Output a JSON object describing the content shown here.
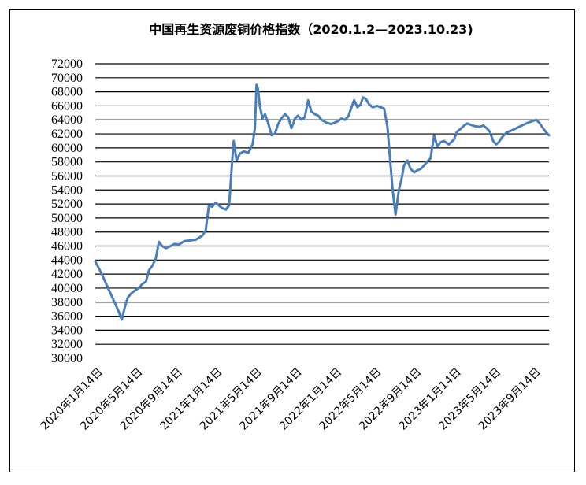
{
  "chart_data": {
    "type": "line",
    "title": "中国再生资源废铜价格指数（2020.1.2—2023.10.23)",
    "xlabel": "",
    "ylabel": "",
    "ylim": [
      30000,
      72000
    ],
    "yticks": [
      30000,
      32000,
      34000,
      36000,
      38000,
      40000,
      42000,
      44000,
      46000,
      48000,
      50000,
      52000,
      54000,
      56000,
      58000,
      60000,
      62000,
      64000,
      66000,
      68000,
      70000,
      72000
    ],
    "grid": true,
    "x_tick_labels": [
      "2020年1月14日",
      "2020年5月14日",
      "2020年9月14日",
      "2021年1月14日",
      "2021年5月14日",
      "2021年9月14日",
      "2022年1月14日",
      "2022年5月14日",
      "2022年9月14日",
      "2023年1月14日",
      "2023年5月14日",
      "2023年9月14日"
    ],
    "x_range": [
      "2020-01-02",
      "2023-10-23"
    ],
    "series": [
      {
        "color": "#4a7ebb",
        "points": [
          [
            "2020-01-02",
            43800
          ],
          [
            "2020-01-22",
            42000
          ],
          [
            "2020-02-10",
            40000
          ],
          [
            "2020-03-01",
            38000
          ],
          [
            "2020-03-15",
            36500
          ],
          [
            "2020-03-23",
            35500
          ],
          [
            "2020-04-01",
            37200
          ],
          [
            "2020-04-10",
            38600
          ],
          [
            "2020-04-20",
            39200
          ],
          [
            "2020-05-01",
            39600
          ],
          [
            "2020-05-14",
            40000
          ],
          [
            "2020-05-25",
            40600
          ],
          [
            "2020-06-05",
            40900
          ],
          [
            "2020-06-15",
            42600
          ],
          [
            "2020-06-25",
            43200
          ],
          [
            "2020-07-05",
            44200
          ],
          [
            "2020-07-15",
            46600
          ],
          [
            "2020-07-25",
            46000
          ],
          [
            "2020-08-05",
            45700
          ],
          [
            "2020-08-20",
            46000
          ],
          [
            "2020-09-01",
            46300
          ],
          [
            "2020-09-14",
            46200
          ],
          [
            "2020-10-01",
            46700
          ],
          [
            "2020-10-20",
            46800
          ],
          [
            "2020-11-05",
            46900
          ],
          [
            "2020-11-25",
            47500
          ],
          [
            "2020-12-05",
            48200
          ],
          [
            "2020-12-15",
            51800
          ],
          [
            "2020-12-25",
            51600
          ],
          [
            "2021-01-05",
            52200
          ],
          [
            "2021-01-14",
            51800
          ],
          [
            "2021-01-25",
            51400
          ],
          [
            "2021-02-05",
            51200
          ],
          [
            "2021-02-15",
            51800
          ],
          [
            "2021-02-25",
            58500
          ],
          [
            "2021-03-01",
            61000
          ],
          [
            "2021-03-10",
            58200
          ],
          [
            "2021-03-20",
            59200
          ],
          [
            "2021-04-01",
            59500
          ],
          [
            "2021-04-15",
            59300
          ],
          [
            "2021-04-28",
            60500
          ],
          [
            "2021-05-05",
            62800
          ],
          [
            "2021-05-10",
            69000
          ],
          [
            "2021-05-14",
            68500
          ],
          [
            "2021-05-20",
            66000
          ],
          [
            "2021-05-28",
            64200
          ],
          [
            "2021-06-05",
            64800
          ],
          [
            "2021-06-15",
            63500
          ],
          [
            "2021-06-25",
            61800
          ],
          [
            "2021-07-05",
            62000
          ],
          [
            "2021-07-15",
            63400
          ],
          [
            "2021-07-25",
            64200
          ],
          [
            "2021-08-05",
            64800
          ],
          [
            "2021-08-15",
            64400
          ],
          [
            "2021-08-25",
            62800
          ],
          [
            "2021-09-05",
            64200
          ],
          [
            "2021-09-14",
            64600
          ],
          [
            "2021-09-25",
            64000
          ],
          [
            "2021-10-05",
            64400
          ],
          [
            "2021-10-15",
            66800
          ],
          [
            "2021-10-25",
            65200
          ],
          [
            "2021-11-05",
            64800
          ],
          [
            "2021-11-15",
            64600
          ],
          [
            "2021-11-25",
            64000
          ],
          [
            "2021-12-10",
            63600
          ],
          [
            "2021-12-25",
            63400
          ],
          [
            "2022-01-14",
            63800
          ],
          [
            "2022-01-25",
            64200
          ],
          [
            "2022-02-05",
            64000
          ],
          [
            "2022-02-15",
            64500
          ],
          [
            "2022-02-25",
            65800
          ],
          [
            "2022-03-05",
            66800
          ],
          [
            "2022-03-15",
            65800
          ],
          [
            "2022-03-25",
            66200
          ],
          [
            "2022-04-01",
            67200
          ],
          [
            "2022-04-10",
            67000
          ],
          [
            "2022-04-20",
            66200
          ],
          [
            "2022-05-01",
            65800
          ],
          [
            "2022-05-14",
            66000
          ],
          [
            "2022-05-25",
            65800
          ],
          [
            "2022-06-05",
            65600
          ],
          [
            "2022-06-15",
            63000
          ],
          [
            "2022-06-22",
            59000
          ],
          [
            "2022-07-01",
            54000
          ],
          [
            "2022-07-10",
            50500
          ],
          [
            "2022-07-20",
            54000
          ],
          [
            "2022-07-28",
            55500
          ],
          [
            "2022-08-05",
            57500
          ],
          [
            "2022-08-15",
            58200
          ],
          [
            "2022-08-25",
            57000
          ],
          [
            "2022-09-05",
            56500
          ],
          [
            "2022-09-14",
            56800
          ],
          [
            "2022-09-25",
            57000
          ],
          [
            "2022-10-05",
            57500
          ],
          [
            "2022-10-15",
            58000
          ],
          [
            "2022-10-25",
            58500
          ],
          [
            "2022-11-05",
            61800
          ],
          [
            "2022-11-15",
            60200
          ],
          [
            "2022-11-25",
            60800
          ],
          [
            "2022-12-05",
            61000
          ],
          [
            "2022-12-20",
            60500
          ],
          [
            "2023-01-05",
            61200
          ],
          [
            "2023-01-14",
            62300
          ],
          [
            "2023-01-25",
            62700
          ],
          [
            "2023-02-05",
            63200
          ],
          [
            "2023-02-15",
            63500
          ],
          [
            "2023-02-25",
            63300
          ],
          [
            "2023-03-10",
            63100
          ],
          [
            "2023-03-25",
            63000
          ],
          [
            "2023-04-05",
            63200
          ],
          [
            "2023-04-15",
            62800
          ],
          [
            "2023-04-25",
            62300
          ],
          [
            "2023-05-05",
            61000
          ],
          [
            "2023-05-14",
            60500
          ],
          [
            "2023-05-22",
            60800
          ],
          [
            "2023-06-01",
            61500
          ],
          [
            "2023-06-15",
            62200
          ],
          [
            "2023-07-01",
            62500
          ],
          [
            "2023-07-15",
            62800
          ],
          [
            "2023-08-01",
            63200
          ],
          [
            "2023-08-15",
            63500
          ],
          [
            "2023-09-01",
            63800
          ],
          [
            "2023-09-14",
            64000
          ],
          [
            "2023-09-25",
            63500
          ],
          [
            "2023-10-05",
            62800
          ],
          [
            "2023-10-15",
            62200
          ],
          [
            "2023-10-23",
            61800
          ]
        ]
      }
    ]
  }
}
